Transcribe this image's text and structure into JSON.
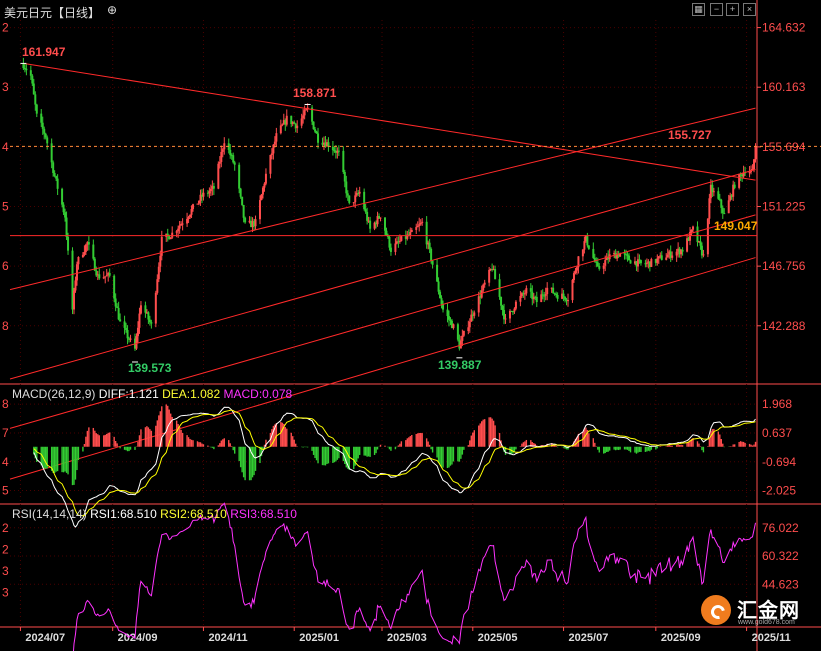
{
  "header": {
    "title": "美元日元【日线】",
    "settings_icon": "circle-plus-icon",
    "tools": [
      "grid-icon",
      "minus-box-icon",
      "plus-box-icon",
      "close-box-icon"
    ]
  },
  "macd": {
    "label": "MACD(26,12,9)",
    "diff": "DIFF:1.121",
    "dea": "DEA:1.082",
    "macd": "MACD:0.078"
  },
  "rsi": {
    "label": "RSI(14,14,14)",
    "rsi1": "RSI1:68.510",
    "rsi2": "RSI2:68.510",
    "rsi3": "RSI3:68.510"
  },
  "axis": {
    "price_ticks": [
      "164.632",
      "160.163",
      "155.694",
      "151.225",
      "146.756",
      "142.288"
    ],
    "macd_ticks": [
      "1.968",
      "0.637",
      "-0.694",
      "-2.025"
    ],
    "rsi_ticks": [
      "76.022",
      "60.322",
      "44.623"
    ],
    "date_ticks": [
      "2024/07",
      "2024/09",
      "2024/11",
      "2025/01",
      "2025/03",
      "2025/05",
      "2025/07",
      "2025/09",
      "2025/11"
    ],
    "left_price": [
      "2",
      "3",
      "4",
      "5",
      "6",
      "8"
    ],
    "left_macd": [
      "8",
      "7",
      "4",
      "5"
    ],
    "left_rsi": [
      "2",
      "2",
      "3",
      "3"
    ]
  },
  "annotations": {
    "high1": "161.947",
    "high2": "158.871",
    "last": "155.727",
    "low1": "139.573",
    "low2": "139.887",
    "level": "149.047"
  },
  "logo": {
    "name": "汇金网",
    "url": "www.gold678.com"
  },
  "colors": {
    "up": "#ff4d4d",
    "down": "#33cc33",
    "diff": "#ffffff",
    "dea": "#ffff00",
    "rsi": "#ff33ff",
    "grid": "#4a0000",
    "axis": "#ff4d4d",
    "trend": "#ff2a2a"
  },
  "chart_data": {
    "type": "candlestick",
    "title": "美元日元【日线】",
    "anchor_prices": [
      [
        "2024-07-03",
        161.9
      ],
      [
        "2024-07-08",
        161.0
      ],
      [
        "2024-07-12",
        158.0
      ],
      [
        "2024-07-18",
        156.5
      ],
      [
        "2024-07-24",
        153.5
      ],
      [
        "2024-07-31",
        150.5
      ],
      [
        "2024-08-05",
        143.5
      ],
      [
        "2024-08-08",
        147.0
      ],
      [
        "2024-08-15",
        148.5
      ],
      [
        "2024-08-22",
        146.0
      ],
      [
        "2024-08-30",
        146.0
      ],
      [
        "2024-09-06",
        142.5
      ],
      [
        "2024-09-16",
        140.5
      ],
      [
        "2024-09-20",
        144.0
      ],
      [
        "2024-09-27",
        142.3
      ],
      [
        "2024-10-04",
        148.7
      ],
      [
        "2024-10-11",
        149.2
      ],
      [
        "2024-10-21",
        150.5
      ],
      [
        "2024-10-31",
        152.0
      ],
      [
        "2024-11-08",
        152.6
      ],
      [
        "2024-11-15",
        156.2
      ],
      [
        "2024-11-22",
        154.3
      ],
      [
        "2024-11-29",
        149.8
      ],
      [
        "2024-12-06",
        150.0
      ],
      [
        "2024-12-13",
        153.6
      ],
      [
        "2024-12-20",
        156.5
      ],
      [
        "2024-12-27",
        157.8
      ],
      [
        "2025-01-03",
        157.3
      ],
      [
        "2025-01-10",
        158.5
      ],
      [
        "2025-01-17",
        156.3
      ],
      [
        "2025-01-24",
        155.9
      ],
      [
        "2025-01-31",
        155.2
      ],
      [
        "2025-02-07",
        151.3
      ],
      [
        "2025-02-14",
        152.3
      ],
      [
        "2025-02-21",
        149.5
      ],
      [
        "2025-02-28",
        150.6
      ],
      [
        "2025-03-07",
        148.0
      ],
      [
        "2025-03-14",
        148.7
      ],
      [
        "2025-03-21",
        149.2
      ],
      [
        "2025-03-28",
        150.0
      ],
      [
        "2025-04-04",
        146.9
      ],
      [
        "2025-04-11",
        143.5
      ],
      [
        "2025-04-18",
        142.2
      ],
      [
        "2025-04-22",
        140.8
      ],
      [
        "2025-04-30",
        143.0
      ],
      [
        "2025-05-09",
        145.4
      ],
      [
        "2025-05-14",
        146.7
      ],
      [
        "2025-05-23",
        142.6
      ],
      [
        "2025-05-30",
        144.0
      ],
      [
        "2025-06-06",
        144.9
      ],
      [
        "2025-06-13",
        144.1
      ],
      [
        "2025-06-20",
        145.1
      ],
      [
        "2025-06-27",
        144.6
      ],
      [
        "2025-07-04",
        144.4
      ],
      [
        "2025-07-11",
        147.4
      ],
      [
        "2025-07-16",
        148.8
      ],
      [
        "2025-07-24",
        146.5
      ],
      [
        "2025-08-01",
        147.5
      ],
      [
        "2025-08-08",
        147.7
      ],
      [
        "2025-08-15",
        147.2
      ],
      [
        "2025-08-22",
        146.9
      ],
      [
        "2025-08-29",
        147.0
      ],
      [
        "2025-09-05",
        147.4
      ],
      [
        "2025-09-12",
        147.7
      ],
      [
        "2025-09-19",
        148.0
      ],
      [
        "2025-09-26",
        149.5
      ],
      [
        "2025-10-03",
        147.5
      ],
      [
        "2025-10-08",
        152.6
      ],
      [
        "2025-10-14",
        151.5
      ],
      [
        "2025-10-17",
        150.6
      ],
      [
        "2025-10-24",
        152.9
      ],
      [
        "2025-10-31",
        154.0
      ],
      [
        "2025-11-05",
        153.8
      ],
      [
        "2025-11-07",
        155.7
      ]
    ],
    "highs_lows": [
      {
        "date": "2024-07-03",
        "value": 161.947,
        "kind": "high"
      },
      {
        "date": "2024-09-16",
        "value": 139.573,
        "kind": "low"
      },
      {
        "date": "2025-01-10",
        "value": 158.871,
        "kind": "high"
      },
      {
        "date": "2025-04-22",
        "value": 139.887,
        "kind": "low"
      }
    ],
    "last_price": 155.727,
    "horizontal_level": 149.047,
    "trendlines": [
      {
        "name": "descending",
        "from": [
          "2024-07-03",
          161.947
        ],
        "to": [
          "2025-11-07",
          153.2
        ]
      },
      {
        "name": "channel-1",
        "from": [
          "2024-06-24",
          145.0
        ],
        "to": [
          "2025-11-07",
          158.6
        ]
      },
      {
        "name": "channel-2",
        "from": [
          "2024-06-24",
          138.3
        ],
        "to": [
          "2025-11-07",
          154.0
        ]
      },
      {
        "name": "channel-3",
        "from": [
          "2024-06-24",
          134.6
        ],
        "to": [
          "2025-11-07",
          150.6
        ]
      },
      {
        "name": "channel-4",
        "from": [
          "2024-06-24",
          130.8
        ],
        "to": [
          "2025-11-07",
          147.4
        ]
      }
    ],
    "price_axis": {
      "ticks": [
        164.632,
        160.163,
        155.694,
        151.225,
        146.756,
        142.288
      ]
    },
    "macd_axis": {
      "ticks": [
        1.968,
        0.637,
        -0.694,
        -2.025
      ]
    },
    "rsi_axis": {
      "ticks": [
        76.022,
        60.322,
        44.623
      ]
    },
    "x_range": [
      "2024-06-24",
      "2025-11-08"
    ],
    "macd_last": {
      "diff": 1.121,
      "dea": 1.082,
      "macd": 0.078
    },
    "rsi_last": {
      "rsi1": 68.51,
      "rsi2": 68.51,
      "rsi3": 68.51
    }
  }
}
